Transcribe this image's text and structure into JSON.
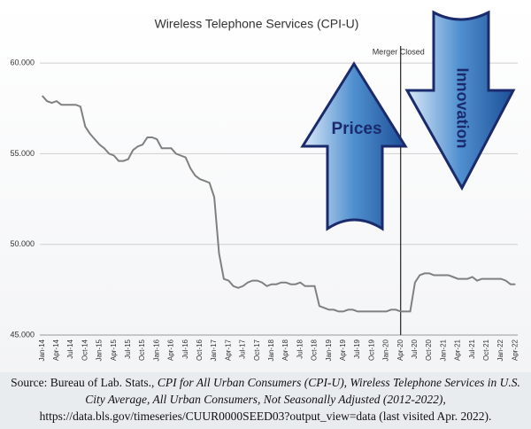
{
  "chart_data": {
    "type": "line",
    "title": "Wireless Telephone Services (CPI-U)",
    "categories": [
      "Jan-14",
      null,
      null,
      "Apr-14",
      null,
      null,
      "Jul-14",
      null,
      null,
      "Oct-14",
      null,
      null,
      "Jan-15",
      null,
      null,
      "Apr-15",
      null,
      null,
      "Jul-15",
      null,
      null,
      "Oct-15",
      null,
      null,
      "Jan-16",
      null,
      null,
      "Apr-16",
      null,
      null,
      "Jul-16",
      null,
      null,
      "Oct-16",
      null,
      null,
      "Jan-17",
      null,
      null,
      "Apr-17",
      null,
      null,
      "Jul-17",
      null,
      null,
      "Oct-17",
      null,
      null,
      "Jan-18",
      null,
      null,
      "Apr-18",
      null,
      null,
      "Jul-18",
      null,
      null,
      "Oct-18",
      null,
      null,
      "Jan-19",
      null,
      null,
      "Apr-19",
      null,
      null,
      "Jul-19",
      null,
      null,
      "Oct-19",
      null,
      null,
      "Jan-20",
      null,
      null,
      "Apr-20",
      null,
      null,
      "Jul-20",
      null,
      null,
      "Oct-20",
      null,
      null,
      "Jan-21",
      null,
      null,
      "Apr-21",
      null,
      null,
      "Jul-21",
      null,
      null,
      "Oct-21",
      null,
      null,
      "Jan-22",
      null,
      null,
      "Apr-22"
    ],
    "values": [
      58.2,
      57.9,
      57.8,
      57.9,
      57.7,
      57.7,
      57.7,
      57.7,
      57.6,
      56.5,
      56.1,
      55.8,
      55.5,
      55.3,
      55.0,
      54.9,
      54.6,
      54.6,
      54.7,
      55.2,
      55.4,
      55.5,
      55.9,
      55.9,
      55.8,
      55.3,
      55.3,
      55.3,
      55.0,
      54.9,
      54.8,
      54.2,
      53.8,
      53.6,
      53.5,
      53.4,
      52.6,
      49.5,
      48.1,
      48.0,
      47.7,
      47.6,
      47.7,
      47.9,
      48.0,
      48.0,
      47.9,
      47.7,
      47.8,
      47.8,
      47.9,
      47.9,
      47.8,
      47.8,
      47.9,
      47.7,
      47.7,
      47.7,
      46.6,
      46.5,
      46.4,
      46.4,
      46.3,
      46.3,
      46.4,
      46.4,
      46.3,
      46.3,
      46.3,
      46.3,
      46.3,
      46.3,
      46.3,
      46.4,
      46.4,
      46.3,
      46.3,
      46.3,
      47.9,
      48.3,
      48.4,
      48.4,
      48.3,
      48.3,
      48.3,
      48.3,
      48.2,
      48.1,
      48.1,
      48.1,
      48.2,
      48.0,
      48.1,
      48.1,
      48.1,
      48.1,
      48.1,
      48.0,
      47.8,
      47.8
    ],
    "color": "#808080",
    "ylim": [
      45,
      62.5
    ],
    "yticks": [
      {
        "value": 45,
        "label": "45.000"
      },
      {
        "value": 50,
        "label": "50.000"
      },
      {
        "value": 55,
        "label": "55.000"
      },
      {
        "value": 60,
        "label": "60.000"
      }
    ],
    "grid": true,
    "marker_line": {
      "text": "Merger Closed",
      "x": "Apr-20"
    },
    "arrow_up_label": "Prices",
    "arrow_down_label": "Innovation",
    "source_prefix": "Source: Bureau of Lab. Stats.,",
    "source_title": "CPI for All Urban Consumers (CPI-U), Wireless Telephone Services in U.S. City Average, All Urban Consumers, Not Seasonally Adjusted (2012-2022),",
    "source_suffix": "https://data.bls.gov/timeseries/CUUR0000SEED03?output_view=data (last visited Apr. 2022)."
  }
}
